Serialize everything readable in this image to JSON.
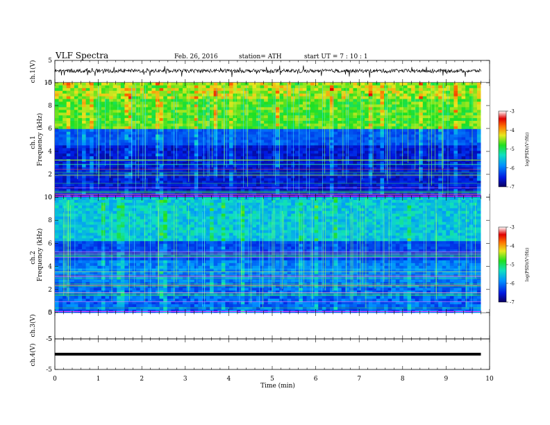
{
  "header": {
    "title": "VLF  Spectra",
    "date": "Feb. 26, 2016",
    "station": "station= ATH",
    "start": "start  UT  =    7  : 10 : 1"
  },
  "chart_data": [
    {
      "type": "line",
      "panel": "ch1-waveform",
      "ylabel": "ch.1(V)",
      "ylim": [
        -5,
        5
      ],
      "yticks": [
        "5",
        "-5"
      ],
      "x": "time (min)",
      "baseline": 0.3
    },
    {
      "type": "heatmap",
      "panel": "ch1-spectrogram",
      "ylabel": "ch.1\nFrequency (kHz)",
      "ylabel_top": "ch.1",
      "ylabel_bottom": "Frequency  (kHz)",
      "ylim": [
        0,
        10
      ],
      "yticks": [
        "0",
        "2",
        "4",
        "6",
        "8",
        "10"
      ],
      "colorbar": {
        "label": "log(PSD)(V²/Hz)",
        "range": [
          -7,
          -3
        ],
        "ticks": [
          "-3",
          "-4",
          "-5",
          "-6",
          "-7"
        ]
      }
    },
    {
      "type": "heatmap",
      "panel": "ch2-spectrogram",
      "ylabel_top": "ch.2",
      "ylabel_bottom": "Frequency  (kHz)",
      "ylim": [
        0,
        10
      ],
      "yticks": [
        "0",
        "2",
        "4",
        "6",
        "8",
        "10"
      ],
      "colorbar": {
        "label": "log(PSD)(V²/Hz)",
        "range": [
          -7,
          -3
        ],
        "ticks": [
          "-3",
          "-4",
          "-5",
          "-6",
          "-7"
        ]
      }
    },
    {
      "type": "line",
      "panel": "ch3-waveform",
      "ylabel": "ch.3(V)",
      "ylim": [
        -5,
        5
      ],
      "yticks": [
        "5",
        "-5"
      ]
    },
    {
      "type": "line",
      "panel": "ch4-waveform",
      "ylabel": "ch.4(V)",
      "ylim": [
        -5,
        5
      ],
      "yticks": [
        "5",
        "-5"
      ],
      "baseline": 0
    }
  ],
  "xaxis": {
    "label": "Time  (min)",
    "range": [
      0,
      10
    ],
    "ticks": [
      "0",
      "1",
      "2",
      "3",
      "4",
      "5",
      "6",
      "7",
      "8",
      "9",
      "10"
    ],
    "data_end": 9.8
  }
}
